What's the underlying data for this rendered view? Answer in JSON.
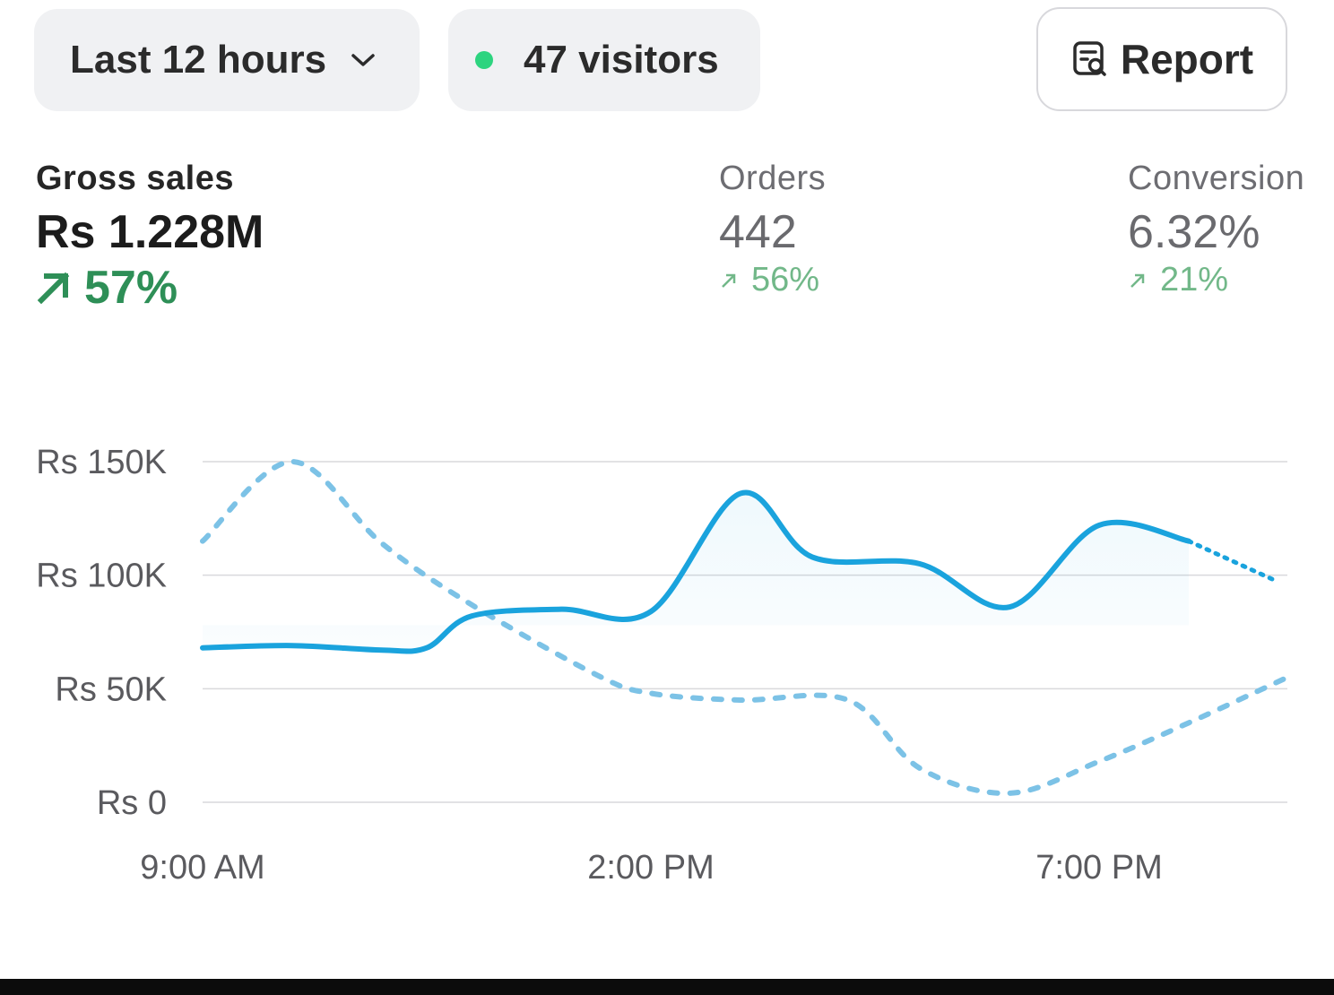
{
  "toolbar": {
    "range_label": "Last 12 hours",
    "visitors_label": "47 visitors",
    "report_label": "Report",
    "live_dot_color": "#2dd47f",
    "icons": {
      "range": "chevron-down-icon",
      "report": "report-search-icon",
      "live": "live-dot"
    }
  },
  "metrics": {
    "gross": {
      "label": "Gross sales",
      "value": "Rs 1.228M",
      "delta": "57%",
      "trend": "up"
    },
    "orders": {
      "label": "Orders",
      "value": "442",
      "delta": "56%",
      "trend": "up"
    },
    "conversion": {
      "label": "Conversion",
      "value": "6.32%",
      "delta": "21%",
      "trend": "up"
    }
  },
  "colors": {
    "accent": "#1aa3dd",
    "positive": "#2e8f57",
    "positive_muted": "#72b889"
  },
  "chart_data": {
    "type": "line",
    "ylim": [
      0,
      150000
    ],
    "y_ticks": [
      {
        "value": 150000,
        "label": "Rs 150K"
      },
      {
        "value": 100000,
        "label": "Rs 100K"
      },
      {
        "value": 50000,
        "label": "Rs 50K"
      },
      {
        "value": 0,
        "label": "Rs 0"
      }
    ],
    "x_ticks": [
      {
        "hour": 9,
        "label": "9:00 AM"
      },
      {
        "hour": 14,
        "label": "2:00 PM"
      },
      {
        "hour": 19,
        "label": "7:00 PM"
      }
    ],
    "xlim": [
      9,
      21.1
    ],
    "grid": true,
    "series": [
      {
        "style": "solid",
        "color": "#1aa3dd",
        "projected_from_hour": 20,
        "points": [
          [
            9,
            68000
          ],
          [
            10,
            69000
          ],
          [
            11,
            67000
          ],
          [
            11.5,
            68000
          ],
          [
            12,
            82000
          ],
          [
            13,
            85000
          ],
          [
            14,
            84000
          ],
          [
            15,
            136000
          ],
          [
            15.8,
            108000
          ],
          [
            17,
            105000
          ],
          [
            18,
            86000
          ],
          [
            19,
            122000
          ],
          [
            20,
            115000
          ],
          [
            21,
            97000
          ]
        ]
      },
      {
        "style": "dotted",
        "color": "#7cc2e6",
        "points": [
          [
            9,
            115000
          ],
          [
            10,
            150000
          ],
          [
            11,
            114000
          ],
          [
            12,
            87000
          ],
          [
            13.4,
            56000
          ],
          [
            14,
            48000
          ],
          [
            15,
            45000
          ],
          [
            16.2,
            45000
          ],
          [
            17,
            15000
          ],
          [
            18,
            4000
          ],
          [
            19,
            18000
          ],
          [
            20,
            35000
          ],
          [
            21.1,
            55000
          ]
        ]
      }
    ]
  }
}
